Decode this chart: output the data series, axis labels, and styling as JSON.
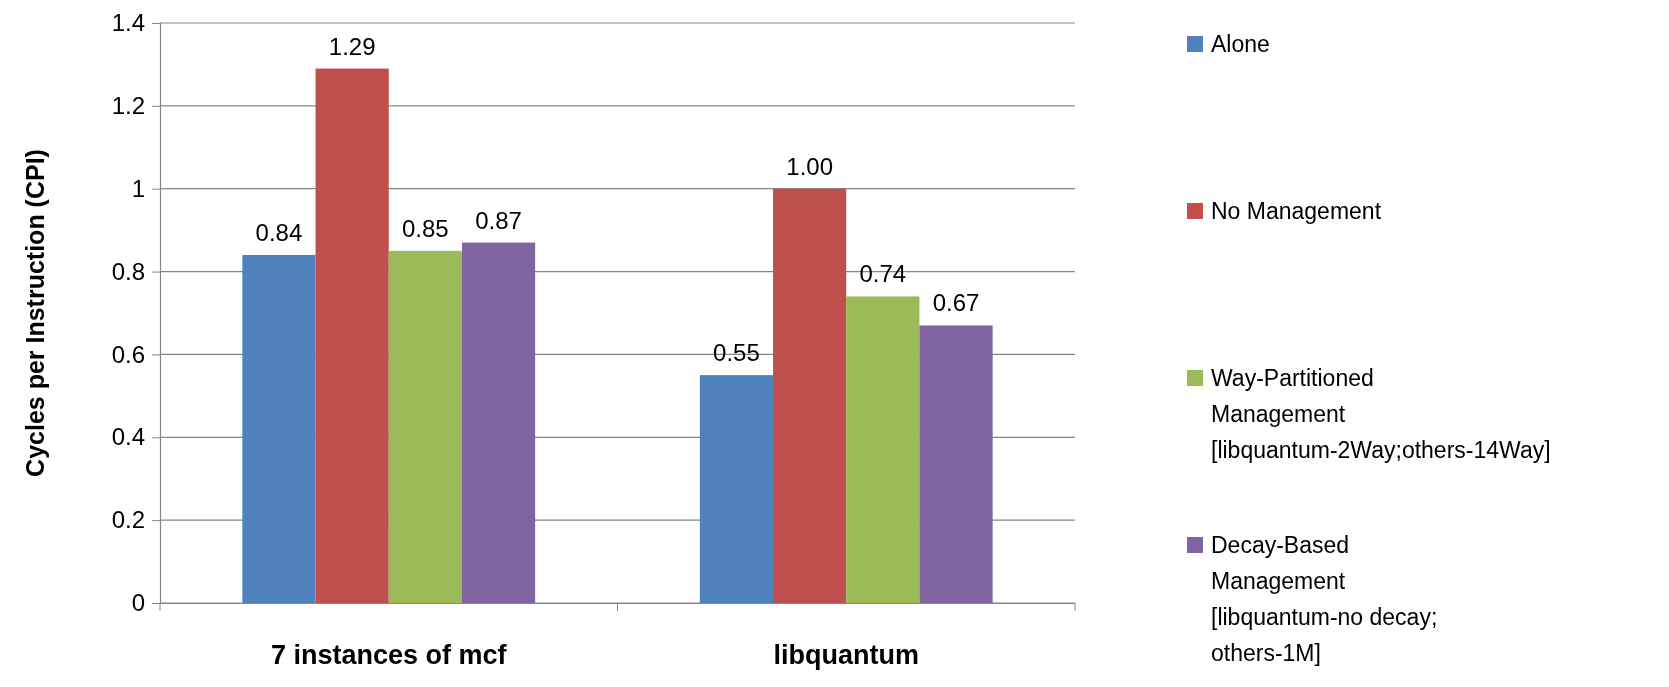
{
  "chart_data": {
    "type": "bar",
    "ylabel": "Cycles per Instruction (CPI)",
    "categories": [
      "7 instances of mcf",
      "libquantum"
    ],
    "series": [
      {
        "name": "Alone",
        "color": "#4f81bd",
        "values": [
          0.84,
          0.55
        ],
        "value_labels": [
          "0.84",
          "0.55"
        ]
      },
      {
        "name": "No Management",
        "color": "#c0504d",
        "values": [
          1.29,
          1.0
        ],
        "value_labels": [
          "1.29",
          "1.00"
        ]
      },
      {
        "name": "Way-Partitioned Management [libquantum-2Way;others-14Way]",
        "color": "#9bbb59",
        "values": [
          0.85,
          0.74
        ],
        "value_labels": [
          "0.85",
          "0.74"
        ]
      },
      {
        "name": "Decay-Based Management [libquantum-no decay; others-1M]",
        "color": "#8064a2",
        "values": [
          0.87,
          0.67
        ],
        "value_labels": [
          "0.87",
          "0.67"
        ]
      }
    ],
    "ylim": [
      0,
      1.4
    ],
    "yticks": [
      0,
      0.2,
      0.4,
      0.6,
      0.8,
      1,
      1.2,
      1.4
    ],
    "grid": "y",
    "legend": "right"
  }
}
